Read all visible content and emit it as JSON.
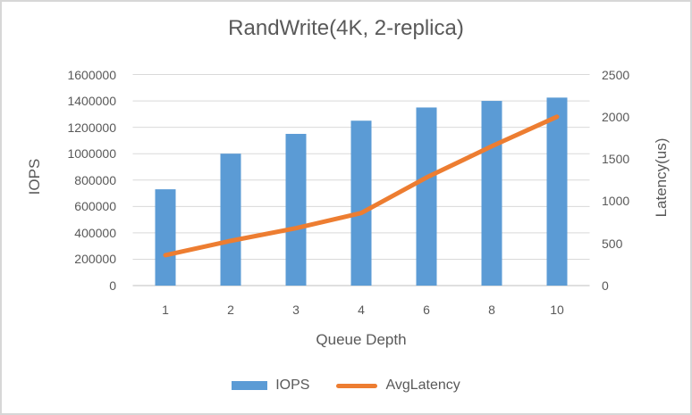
{
  "window": {
    "background": "#ffffff",
    "border_color": "#d7d7d7"
  },
  "chart_data": {
    "type": "combo-bar-line",
    "title": "RandWrite(4K, 2-replica)",
    "xlabel": "Queue Depth",
    "categories": [
      "1",
      "2",
      "3",
      "4",
      "6",
      "8",
      "10"
    ],
    "series": [
      {
        "name": "IOPS",
        "type": "bar",
        "axis": "left",
        "color": "#5B9BD5",
        "values": [
          730000,
          1000000,
          1150000,
          1250000,
          1350000,
          1400000,
          1425000
        ]
      },
      {
        "name": "AvgLatency",
        "type": "line",
        "axis": "right",
        "color": "#ED7D31",
        "values": [
          360,
          530,
          680,
          860,
          1280,
          1650,
          2000
        ]
      }
    ],
    "y_left": {
      "label": "IOPS",
      "min": 0,
      "max": 1600000,
      "tick_step": 200000,
      "ticks": [
        "1600000",
        "1400000",
        "1200000",
        "1000000",
        "800000",
        "600000",
        "400000",
        "200000",
        "0"
      ]
    },
    "y_right": {
      "label": "Latency(us)",
      "min": 0,
      "max": 2500,
      "tick_step": 500,
      "ticks": [
        "2500",
        "2000",
        "1500",
        "1000",
        "500",
        "0"
      ]
    },
    "grid": true,
    "legend_position": "bottom",
    "colors": {
      "grid": "#D9D9D9",
      "axis_line": "#BFBFBF",
      "text": "#595959"
    }
  },
  "legend": {
    "items": [
      {
        "label": "IOPS",
        "color": "#5B9BD5",
        "marker": "bar"
      },
      {
        "label": "AvgLatency",
        "color": "#ED7D31",
        "marker": "line"
      }
    ]
  }
}
